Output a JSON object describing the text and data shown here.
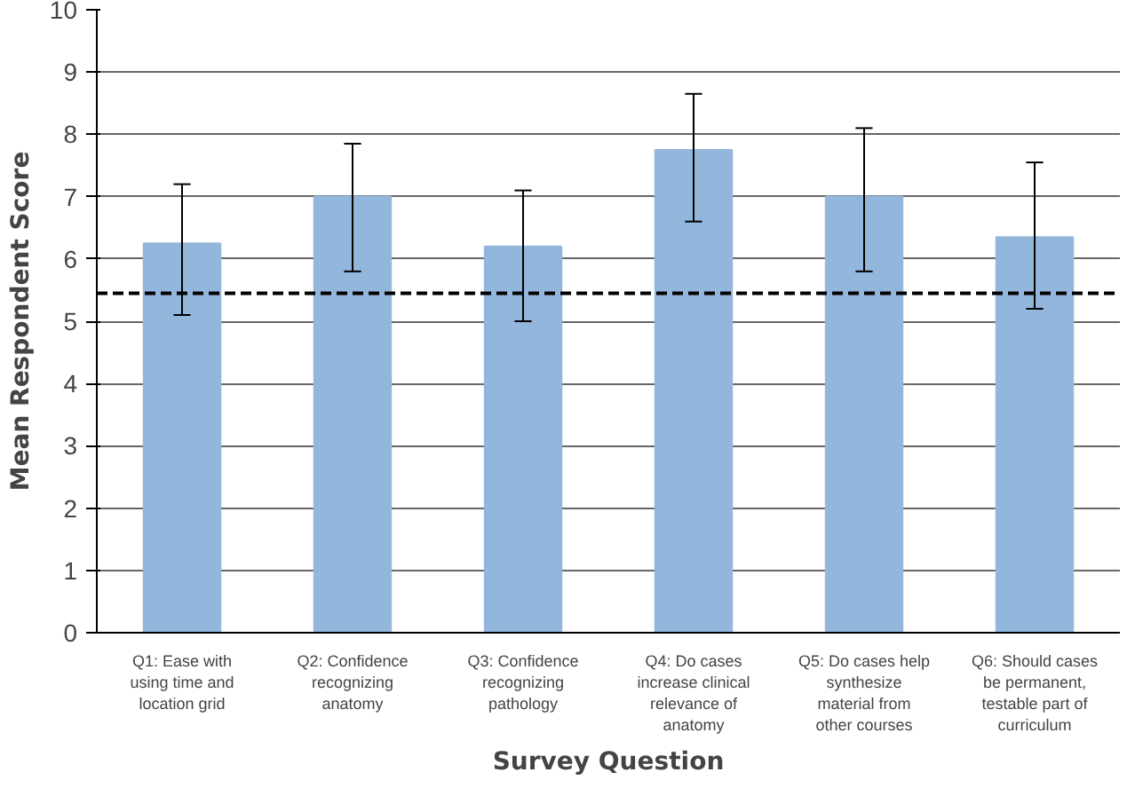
{
  "chart_data": {
    "type": "bar",
    "xlabel": "Survey Question",
    "ylabel": "Mean Respondent Score",
    "categories": [
      "Q1: Ease with using time and location grid",
      "Q2: Confidence recognizing anatomy",
      "Q3: Confidence recognizing pathology",
      "Q4: Do cases increase clinical relevance of anatomy",
      "Q5: Do cases help synthesize material from other courses",
      "Q6: Should cases be permanent, testable part of curriculum"
    ],
    "values": [
      6.25,
      7.0,
      6.2,
      7.75,
      7.0,
      6.35
    ],
    "errors": [
      [
        5.1,
        7.2
      ],
      [
        5.8,
        7.85
      ],
      [
        5.0,
        7.1
      ],
      [
        6.6,
        8.65
      ],
      [
        5.8,
        8.1
      ],
      [
        5.2,
        7.55
      ]
    ],
    "color": "#93b6dc",
    "ylim": [
      0,
      10
    ],
    "yticks": [
      0,
      1,
      2,
      3,
      4,
      5,
      6,
      7,
      8,
      9,
      10
    ],
    "grid": "y",
    "ref_lines": [
      {
        "axis": "y",
        "value": 5.45,
        "color": "#000000",
        "line_style": "dashed"
      }
    ]
  }
}
